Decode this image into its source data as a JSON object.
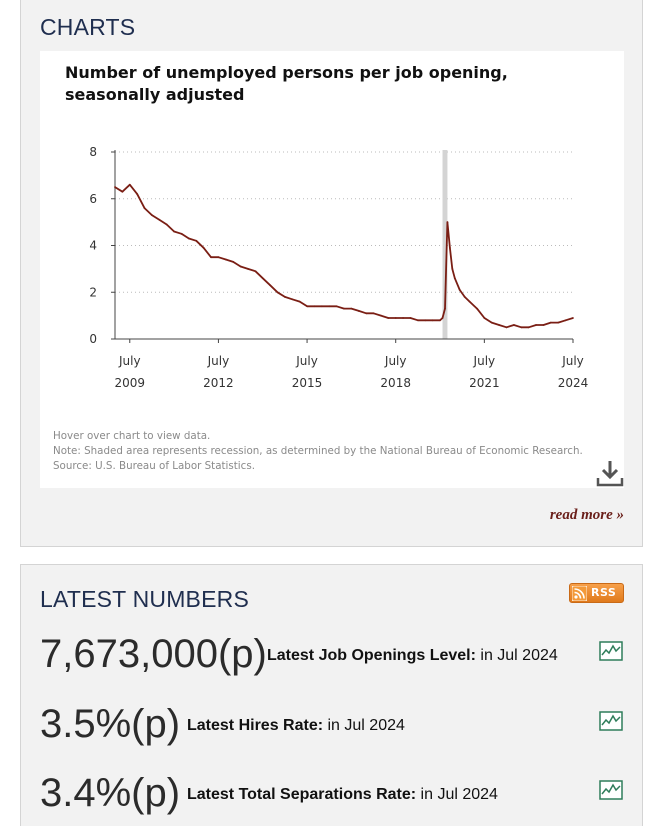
{
  "charts_section": {
    "title": "CHARTS",
    "read_more": "read more »"
  },
  "chart_data": {
    "type": "line",
    "title": "Number of unemployed persons per job opening, seasonally adjusted",
    "xlabel": "",
    "ylabel": "",
    "ylim": [
      0,
      8
    ],
    "yticks": [
      "0",
      "2",
      "4",
      "6",
      "8"
    ],
    "xticks": [
      {
        "month": "July",
        "year": "2009"
      },
      {
        "month": "July",
        "year": "2012"
      },
      {
        "month": "July",
        "year": "2015"
      },
      {
        "month": "July",
        "year": "2018"
      },
      {
        "month": "July",
        "year": "2021"
      },
      {
        "month": "July",
        "year": "2024"
      }
    ],
    "grid": "horizontal-dotted",
    "recession_shading": {
      "start": "2020-02",
      "end": "2020-04"
    },
    "series": [
      {
        "color": "#7a1e14",
        "points": [
          [
            "2009-01",
            6.5
          ],
          [
            "2009-04",
            6.3
          ],
          [
            "2009-07",
            6.6
          ],
          [
            "2009-10",
            6.2
          ],
          [
            "2010-01",
            5.6
          ],
          [
            "2010-04",
            5.3
          ],
          [
            "2010-07",
            5.1
          ],
          [
            "2010-10",
            4.9
          ],
          [
            "2011-01",
            4.6
          ],
          [
            "2011-04",
            4.5
          ],
          [
            "2011-07",
            4.3
          ],
          [
            "2011-10",
            4.2
          ],
          [
            "2012-01",
            3.9
          ],
          [
            "2012-04",
            3.5
          ],
          [
            "2012-07",
            3.5
          ],
          [
            "2012-10",
            3.4
          ],
          [
            "2013-01",
            3.3
          ],
          [
            "2013-04",
            3.1
          ],
          [
            "2013-07",
            3.0
          ],
          [
            "2013-10",
            2.9
          ],
          [
            "2014-01",
            2.6
          ],
          [
            "2014-04",
            2.3
          ],
          [
            "2014-07",
            2.0
          ],
          [
            "2014-10",
            1.8
          ],
          [
            "2015-01",
            1.7
          ],
          [
            "2015-04",
            1.6
          ],
          [
            "2015-07",
            1.4
          ],
          [
            "2015-10",
            1.4
          ],
          [
            "2016-01",
            1.4
          ],
          [
            "2016-04",
            1.4
          ],
          [
            "2016-07",
            1.4
          ],
          [
            "2016-10",
            1.3
          ],
          [
            "2017-01",
            1.3
          ],
          [
            "2017-04",
            1.2
          ],
          [
            "2017-07",
            1.1
          ],
          [
            "2017-10",
            1.1
          ],
          [
            "2018-01",
            1.0
          ],
          [
            "2018-04",
            0.9
          ],
          [
            "2018-07",
            0.9
          ],
          [
            "2018-10",
            0.9
          ],
          [
            "2019-01",
            0.9
          ],
          [
            "2019-04",
            0.8
          ],
          [
            "2019-07",
            0.8
          ],
          [
            "2019-10",
            0.8
          ],
          [
            "2020-01",
            0.8
          ],
          [
            "2020-02",
            0.9
          ],
          [
            "2020-03",
            1.3
          ],
          [
            "2020-04",
            5.0
          ],
          [
            "2020-05",
            3.9
          ],
          [
            "2020-06",
            3.0
          ],
          [
            "2020-07",
            2.6
          ],
          [
            "2020-09",
            2.1
          ],
          [
            "2020-11",
            1.8
          ],
          [
            "2021-01",
            1.6
          ],
          [
            "2021-04",
            1.3
          ],
          [
            "2021-07",
            0.9
          ],
          [
            "2021-10",
            0.7
          ],
          [
            "2022-01",
            0.6
          ],
          [
            "2022-04",
            0.5
          ],
          [
            "2022-07",
            0.6
          ],
          [
            "2022-10",
            0.5
          ],
          [
            "2023-01",
            0.5
          ],
          [
            "2023-04",
            0.6
          ],
          [
            "2023-07",
            0.6
          ],
          [
            "2023-10",
            0.7
          ],
          [
            "2024-01",
            0.7
          ],
          [
            "2024-04",
            0.8
          ],
          [
            "2024-07",
            0.9
          ]
        ]
      }
    ]
  },
  "chart_notes": [
    "Hover over chart to view data.",
    "Note: Shaded area represents recession, as determined by the National Bureau of Economic Research.",
    "Source: U.S. Bureau of Labor Statistics."
  ],
  "latest_section": {
    "title": "LATEST NUMBERS",
    "rss_label": "RSS",
    "stats": [
      {
        "value": "7,673,000(p)",
        "label": "Latest Job Openings Level:",
        "period": " in Jul 2024"
      },
      {
        "value": "3.5%(p)",
        "label": "Latest Hires Rate:",
        "period": " in Jul 2024"
      },
      {
        "value": "3.4%(p)",
        "label": "Latest Total Separations Rate:",
        "period": " in Jul 2024"
      }
    ]
  },
  "colors": {
    "line": "#7a1e14",
    "recession": "#d4d4d4",
    "title": "#1f2e4f",
    "read_more": "#6a1f1a",
    "rss": "#e88a2e",
    "chart_icon": "#2e7d5a"
  },
  "icons": {
    "download": "download-icon",
    "rss": "rss-feed-icon",
    "series_chart": "line-chart-icon"
  }
}
